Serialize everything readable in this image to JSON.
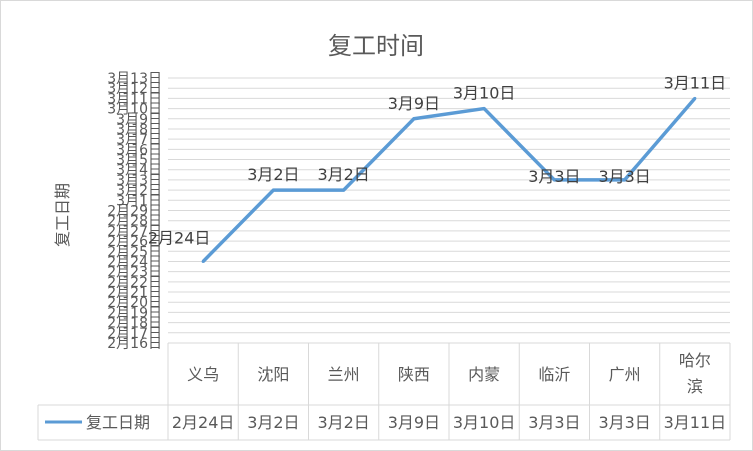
{
  "chart_data": {
    "type": "line",
    "title": "复工时间",
    "ylabel": "复工日期",
    "categories": [
      "义乌",
      "沈阳",
      "兰州",
      "陕西",
      "内蒙",
      "临沂",
      "广州",
      "哈尔滨"
    ],
    "series": [
      {
        "name": "复工日期",
        "values": [
          "2020-02-24",
          "2020-03-02",
          "2020-03-02",
          "2020-03-09",
          "2020-03-10",
          "2020-03-03",
          "2020-03-03",
          "2020-03-11"
        ],
        "labels": [
          "2月24日",
          "3月2日",
          "3月2日",
          "3月9日",
          "3月10日",
          "3月3日",
          "3月3日",
          "3月11日"
        ],
        "color": "#5b9bd5"
      }
    ],
    "ylim": [
      "2020-02-16",
      "2020-03-13"
    ],
    "ytick_labels": [
      "2月16日",
      "2月17日",
      "2月18日",
      "2月19日",
      "2月20日",
      "2月21日",
      "2月22日",
      "2月23日",
      "2月24日",
      "2月25日",
      "2月26日",
      "2月27日",
      "2月28日",
      "2月29日",
      "3月1日",
      "3月2日",
      "3月3日",
      "3月4日",
      "3月5日",
      "3月6日",
      "3月7日",
      "3月8日",
      "3月9日",
      "3月10日",
      "3月11日",
      "3月12日",
      "3月13日"
    ],
    "grid": true,
    "legend": "data-table"
  }
}
